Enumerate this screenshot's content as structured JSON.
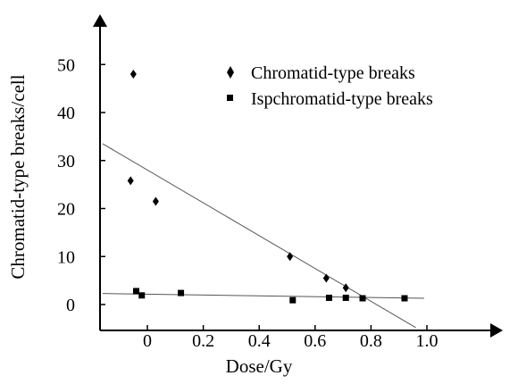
{
  "chart_data": {
    "type": "scatter",
    "xlabel": "Dose/Gy",
    "ylabel": "Chromatid-type breaks/cell",
    "xlim": [
      -0.16,
      1.2
    ],
    "ylim": [
      -3.5,
      56
    ],
    "x_ticks": [
      {
        "value": 0,
        "label": "0"
      },
      {
        "value": 0.2,
        "label": "0.2"
      },
      {
        "value": 0.4,
        "label": "0.4"
      },
      {
        "value": 0.6,
        "label": "0.6"
      },
      {
        "value": 0.8,
        "label": "0.8"
      },
      {
        "value": 1.0,
        "label": "1.0"
      }
    ],
    "y_ticks": [
      {
        "value": 0,
        "label": "0"
      },
      {
        "value": 10,
        "label": "10"
      },
      {
        "value": 20,
        "label": "20"
      },
      {
        "value": 30,
        "label": "30"
      },
      {
        "value": 40,
        "label": "40"
      },
      {
        "value": 50,
        "label": "50"
      }
    ],
    "legend_position": "top-right",
    "grid": false,
    "series": [
      {
        "name": "Chromatid-type breaks",
        "marker": "diamond",
        "color": "#000000",
        "points": [
          {
            "x": -0.05,
            "y": 48.0
          },
          {
            "x": -0.06,
            "y": 25.8
          },
          {
            "x": 0.03,
            "y": 21.5
          },
          {
            "x": 0.51,
            "y": 10.0
          },
          {
            "x": 0.64,
            "y": 5.5
          },
          {
            "x": 0.71,
            "y": 3.5
          }
        ],
        "fit_line": {
          "x": [
            -0.16,
            0.96
          ],
          "y": [
            33.5,
            -4.8
          ]
        }
      },
      {
        "name": "Ispchromatid-type breaks",
        "marker": "square",
        "color": "#000000",
        "points": [
          {
            "x": -0.04,
            "y": 2.8
          },
          {
            "x": -0.02,
            "y": 1.9
          },
          {
            "x": 0.12,
            "y": 2.4
          },
          {
            "x": 0.52,
            "y": 0.9
          },
          {
            "x": 0.65,
            "y": 1.4
          },
          {
            "x": 0.71,
            "y": 1.4
          },
          {
            "x": 0.77,
            "y": 1.3
          },
          {
            "x": 0.92,
            "y": 1.3
          }
        ],
        "fit_line": {
          "x": [
            -0.16,
            0.99
          ],
          "y": [
            2.3,
            1.3
          ]
        }
      }
    ]
  }
}
